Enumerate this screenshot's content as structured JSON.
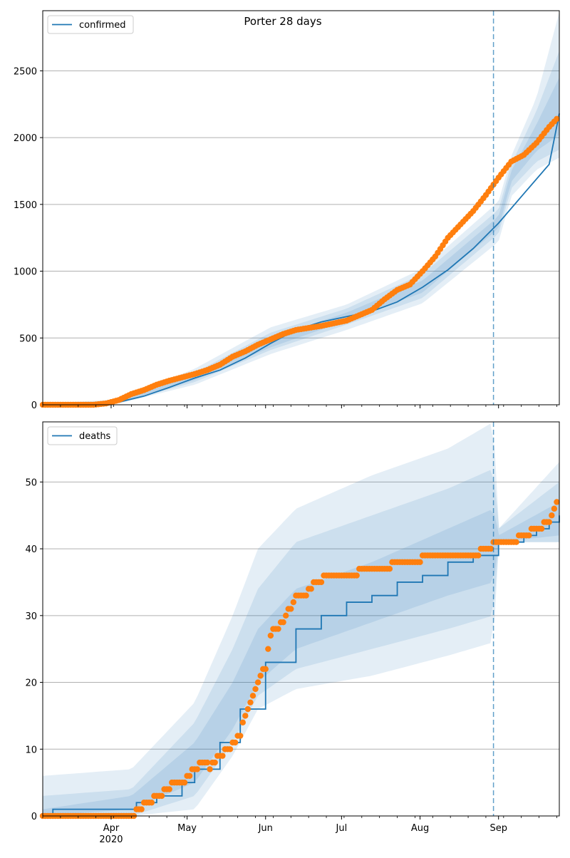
{
  "figure": {
    "suptitle": "Porter 28 days"
  },
  "colors": {
    "model": "#1f77b4",
    "observed": "#ff7f0e",
    "band": "#1f77b4",
    "grid": "#b0b0b0",
    "forecast_line": "#1f77b4"
  },
  "chart_data": [
    {
      "type": "line",
      "name": "confirmed-panel",
      "legend": [
        "confirmed"
      ],
      "legend_position": "top-left",
      "grid": "horizontal",
      "ylim": [
        0,
        2950
      ],
      "yticks": [
        0,
        500,
        1000,
        1500,
        2000,
        2500
      ],
      "forecast_start": "Aug 30",
      "model_curve": {
        "name": "confirmed",
        "x": [
          0,
          20,
          30,
          40,
          50,
          60,
          70,
          80,
          90,
          100,
          110,
          120,
          130,
          140,
          150,
          160,
          170,
          180,
          190,
          200,
          204
        ],
        "y": [
          0,
          0,
          20,
          65,
          130,
          200,
          260,
          350,
          460,
          560,
          620,
          660,
          700,
          770,
          880,
          1010,
          1170,
          1360,
          1580,
          1800,
          2180
        ]
      },
      "bands": [
        {
          "level": "outer",
          "x": [
            0,
            30,
            60,
            90,
            120,
            150,
            180,
            185,
            195,
            204
          ],
          "lower": [
            0,
            10,
            150,
            380,
            560,
            760,
            1220,
            1560,
            1760,
            1850
          ],
          "upper": [
            10,
            40,
            270,
            580,
            750,
            1020,
            1520,
            1860,
            2300,
            2940
          ]
        },
        {
          "level": "middle",
          "x": [
            0,
            30,
            60,
            90,
            120,
            150,
            180,
            185,
            195,
            204
          ],
          "lower": [
            0,
            12,
            170,
            410,
            600,
            800,
            1280,
            1620,
            1820,
            1910
          ],
          "upper": [
            8,
            30,
            240,
            540,
            720,
            980,
            1460,
            1800,
            2200,
            2650
          ]
        },
        {
          "level": "inner",
          "x": [
            0,
            30,
            60,
            90,
            120,
            150,
            180,
            185,
            195,
            204
          ],
          "lower": [
            0,
            15,
            185,
            430,
            630,
            840,
            1320,
            1670,
            1900,
            2020
          ],
          "upper": [
            5,
            25,
            225,
            500,
            690,
            930,
            1410,
            1750,
            2100,
            2450
          ]
        }
      ],
      "observed": {
        "name": "observed",
        "x": [
          0,
          20,
          25,
          30,
          35,
          40,
          45,
          50,
          55,
          60,
          65,
          70,
          75,
          80,
          85,
          90,
          95,
          100,
          105,
          110,
          115,
          120,
          125,
          130,
          135,
          140,
          145,
          150,
          155,
          160,
          165,
          170,
          175,
          180,
          185,
          190,
          195,
          200,
          203
        ],
        "y": [
          0,
          0,
          10,
          35,
          80,
          110,
          150,
          180,
          205,
          230,
          260,
          300,
          360,
          400,
          450,
          490,
          530,
          560,
          575,
          590,
          610,
          630,
          670,
          710,
          790,
          860,
          900,
          1000,
          1110,
          1250,
          1350,
          1450,
          1570,
          1700,
          1820,
          1870,
          1960,
          2080,
          2140
        ]
      },
      "x_axis": {
        "type": "date",
        "tick_labels": [
          "Apr",
          "May",
          "Jun",
          "Jul",
          "Aug",
          "Sep"
        ],
        "year_label": "2020",
        "tick_positions": [
          27,
          57,
          88,
          118,
          149,
          180
        ]
      }
    },
    {
      "type": "line",
      "name": "deaths-panel",
      "legend": [
        "deaths"
      ],
      "legend_position": "top-left",
      "grid": "horizontal",
      "ylim": [
        0,
        59
      ],
      "yticks": [
        0,
        10,
        20,
        30,
        40,
        50
      ],
      "forecast_start": "Aug 30",
      "model_curve": {
        "name": "deaths",
        "x": [
          0,
          4,
          33,
          37,
          45,
          55,
          60,
          70,
          78,
          88,
          100,
          110,
          120,
          130,
          140,
          150,
          160,
          170,
          180,
          185,
          190,
          195,
          200,
          204
        ],
        "y": [
          0,
          1,
          1,
          2,
          3,
          5,
          7,
          11,
          16,
          23,
          28,
          30,
          32,
          33,
          35,
          36,
          38,
          39,
          41,
          41,
          42,
          43,
          44,
          45
        ]
      },
      "bands": [
        {
          "level": "outer",
          "x": [
            0,
            35,
            60,
            75,
            85,
            100,
            130,
            160,
            178,
            180,
            204
          ],
          "lower": [
            0,
            0,
            1,
            9,
            16,
            19,
            21,
            24,
            26,
            41,
            41
          ],
          "upper": [
            6,
            7,
            17,
            30,
            40,
            46,
            51,
            55,
            59,
            43,
            53
          ]
        },
        {
          "level": "middle",
          "x": [
            0,
            35,
            60,
            75,
            85,
            100,
            130,
            160,
            178,
            180,
            204
          ],
          "lower": [
            0,
            0,
            3,
            11,
            18,
            22,
            25,
            28,
            30,
            41,
            41
          ],
          "upper": [
            3,
            4,
            14,
            25,
            34,
            41,
            45,
            49,
            52,
            43,
            50
          ]
        },
        {
          "level": "inner",
          "x": [
            0,
            35,
            60,
            75,
            85,
            100,
            130,
            160,
            178,
            180,
            204
          ],
          "lower": [
            0,
            1,
            5,
            13,
            20,
            25,
            29,
            33,
            35,
            41,
            42
          ],
          "upper": [
            1,
            3,
            11,
            20,
            28,
            34,
            38,
            43,
            46,
            42,
            47
          ]
        }
      ],
      "observed": {
        "name": "observed",
        "x": [
          0,
          36,
          38,
          42,
          46,
          52,
          56,
          60,
          64,
          66,
          70,
          74,
          78,
          80,
          84,
          86,
          88,
          90,
          92,
          95,
          100,
          104,
          108,
          114,
          120,
          130,
          145,
          155,
          170,
          175,
          180,
          185,
          190,
          195,
          200,
          203
        ],
        "y": [
          0,
          0,
          1,
          2,
          3,
          5,
          5,
          7,
          8,
          7,
          9,
          10,
          12,
          15,
          19,
          21,
          22,
          27,
          28,
          29,
          33,
          33,
          35,
          36,
          36,
          37,
          38,
          39,
          39,
          40,
          41,
          41,
          42,
          43,
          44,
          47
        ]
      },
      "x_axis": {
        "type": "date",
        "tick_labels": [
          "Apr",
          "May",
          "Jun",
          "Jul",
          "Aug",
          "Sep"
        ],
        "year_label": "2020",
        "tick_positions": [
          27,
          57,
          88,
          118,
          149,
          180
        ]
      }
    }
  ]
}
